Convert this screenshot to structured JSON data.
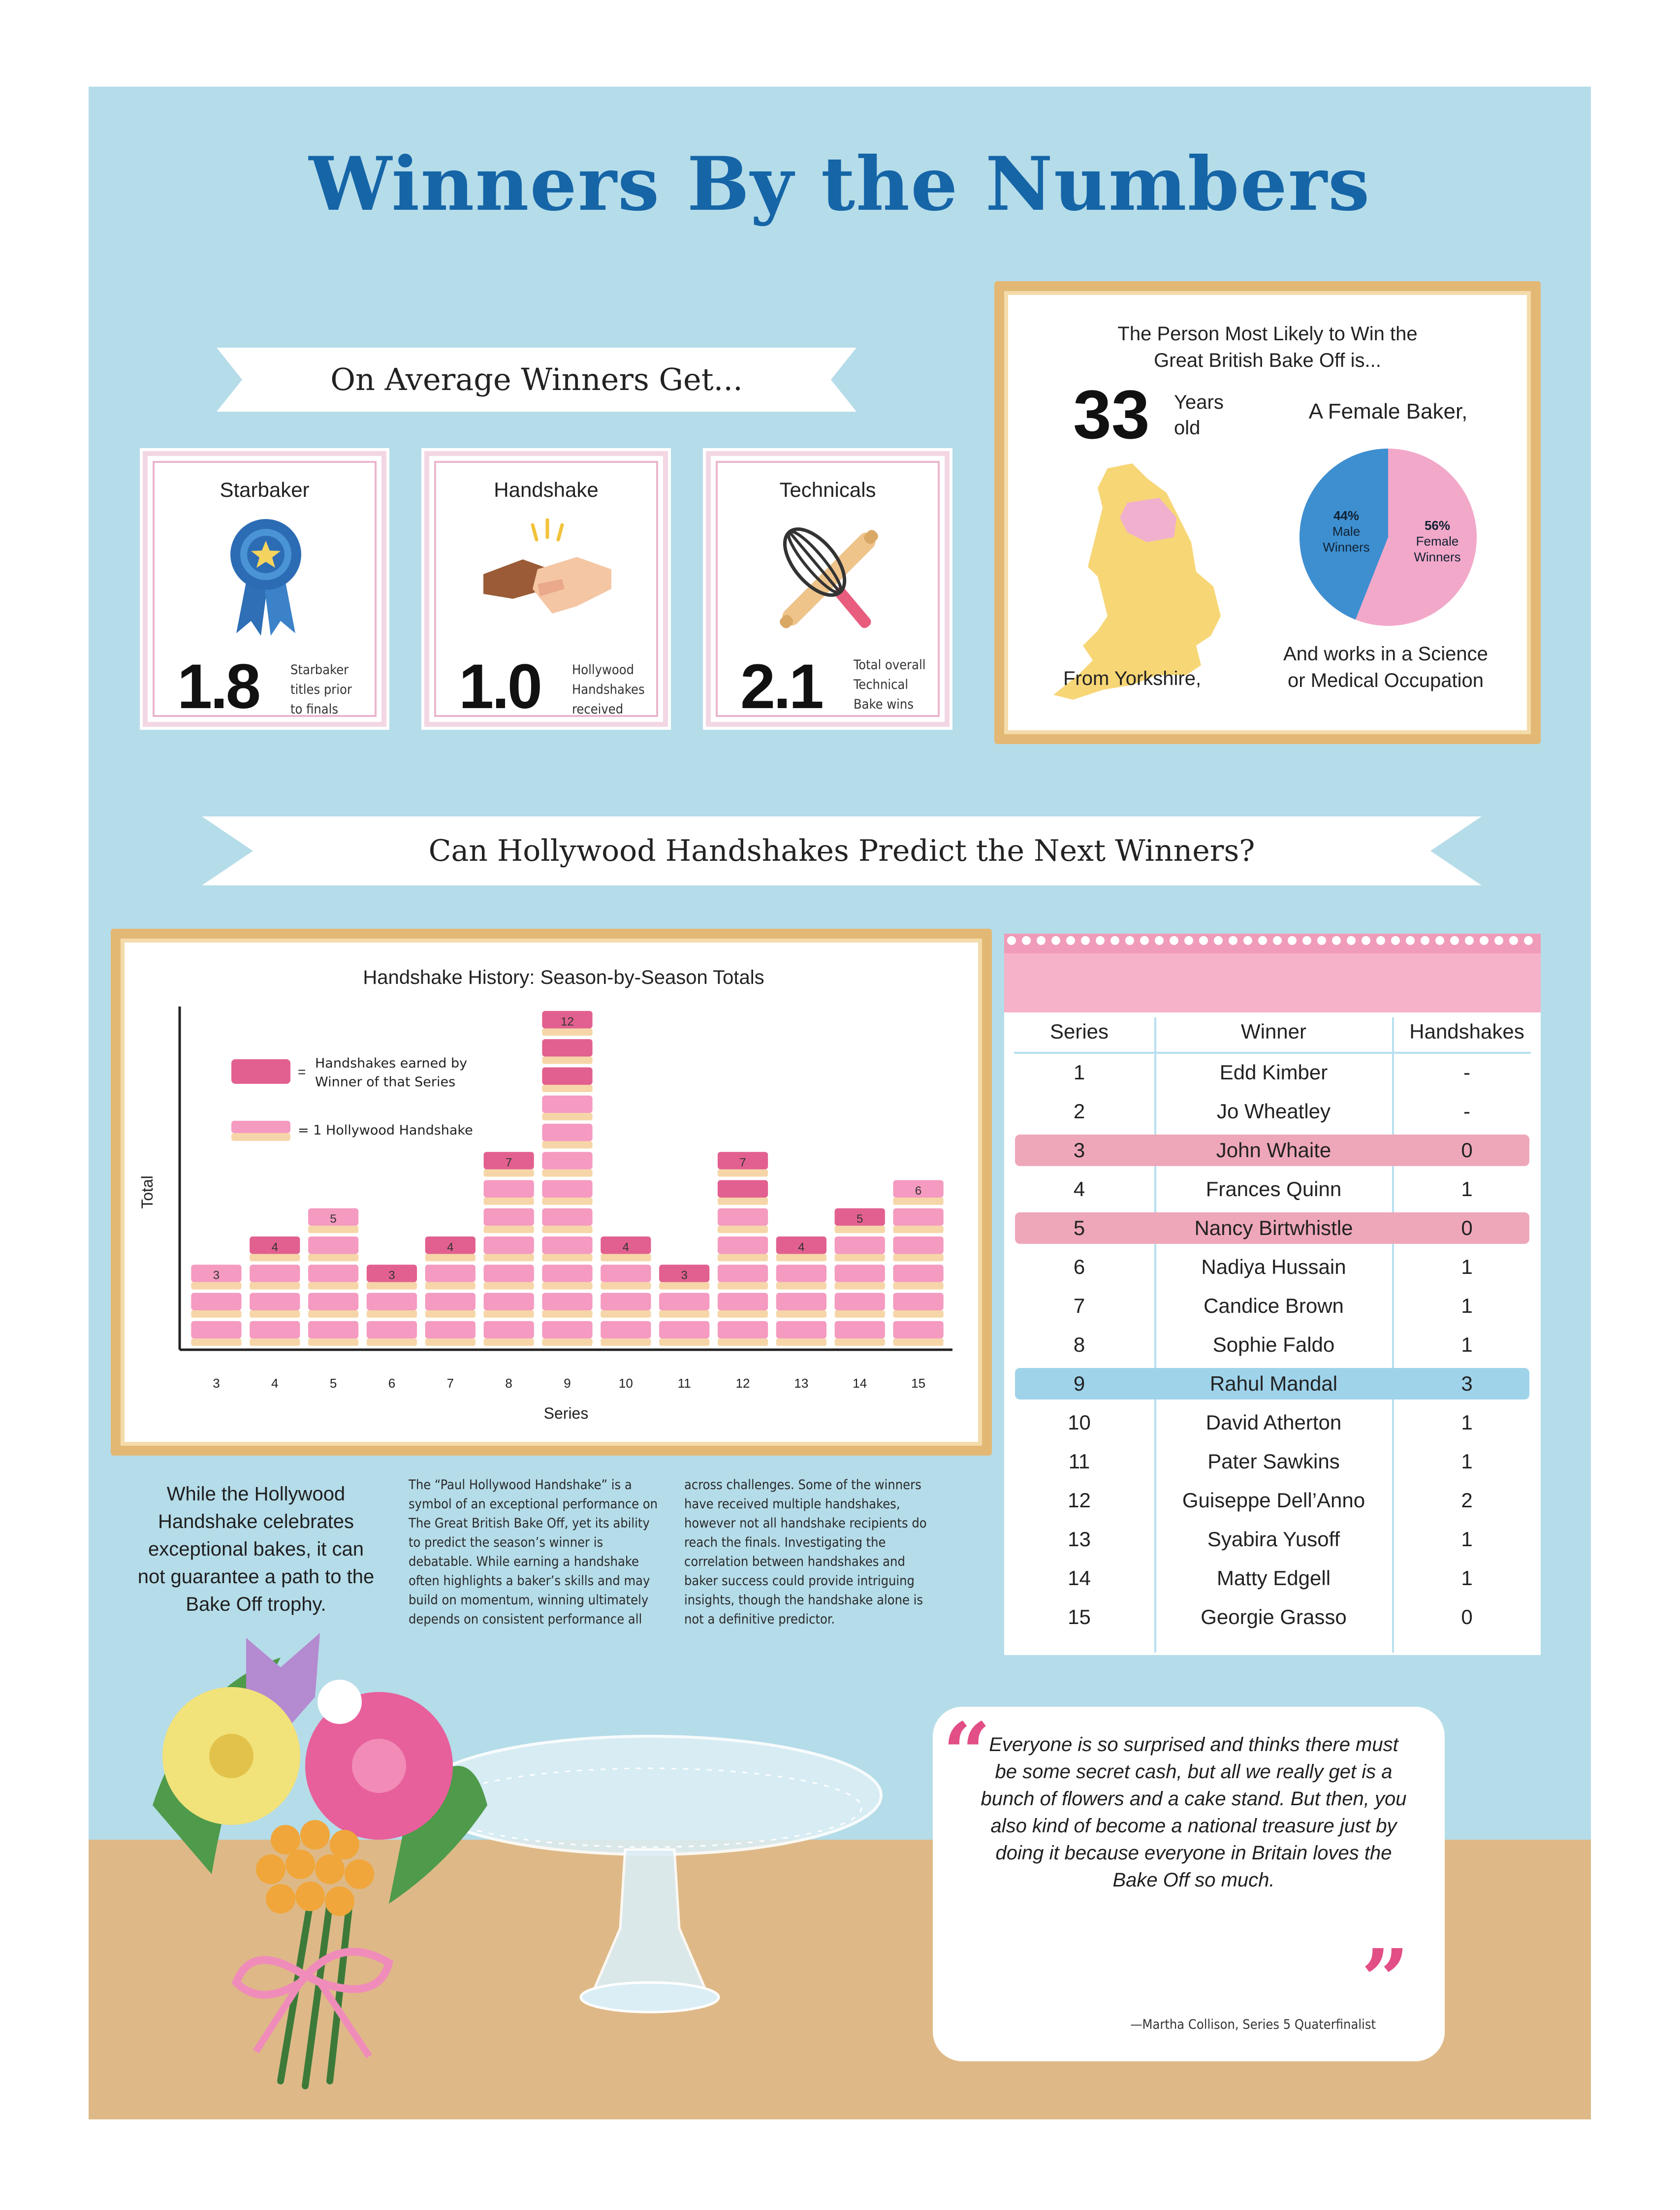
{
  "title": "Winners By the Numbers",
  "average_banner": "On Average Winners Get...",
  "stats": [
    {
      "label": "Starbaker",
      "value": "1.8",
      "caption": [
        "Starbaker",
        "titles prior",
        "to finals"
      ],
      "icon": "blue-ribbon-rosette-icon"
    },
    {
      "label": "Handshake",
      "value": "1.0",
      "caption": [
        "Hollywood",
        "Handshakes",
        "received"
      ],
      "icon": "handshake-icon"
    },
    {
      "label": "Technicals",
      "value": "2.1",
      "caption": [
        "Total overall",
        "Technical",
        "Bake wins"
      ],
      "icon": "whisk-and-rolling-pin-icon"
    }
  ],
  "profile": {
    "heading": [
      "The Person Most Likely to Win the",
      "Great British Bake Off is..."
    ],
    "age": "33",
    "age_unit": [
      "Years",
      "old"
    ],
    "gender": "A Female Baker,",
    "region": "From Yorkshire,",
    "occupation": [
      "And works in a Science",
      "or Medical Occupation"
    ],
    "map_icon": "england-map-icon",
    "pie": {
      "male": {
        "pct": "44%",
        "label": [
          "Male",
          "Winners"
        ],
        "value": 44,
        "color": "#3d8fd0"
      },
      "female": {
        "pct": "56%",
        "label": [
          "Female",
          "Winners"
        ],
        "value": 56,
        "color": "#f2a8c9"
      }
    }
  },
  "handshake_banner": "Can Hollywood Handshakes Predict the Next Winners?",
  "chart_data": {
    "type": "bar",
    "title": "Handshake History: Season-by-Season Totals",
    "xlabel": "Series",
    "ylabel": "Total",
    "categories": [
      "3",
      "4",
      "5",
      "6",
      "7",
      "8",
      "9",
      "10",
      "11",
      "12",
      "13",
      "14",
      "15"
    ],
    "values": [
      3,
      4,
      5,
      3,
      4,
      7,
      12,
      4,
      3,
      7,
      4,
      5,
      6
    ],
    "ylim": [
      0,
      12
    ],
    "legend": [
      "Handshakes earned by",
      "Winner of that Series",
      "= 1 Hollywood Handshake"
    ],
    "winner_handshakes": [
      0,
      1,
      0,
      1,
      1,
      1,
      3,
      1,
      1,
      2,
      1,
      1,
      0
    ],
    "colors": {
      "winner": "#e2608f",
      "handshake": "#f59ac0",
      "cream": "#f6d6a8"
    }
  },
  "table": {
    "headers": [
      "Series",
      "Winner",
      "Handshakes"
    ],
    "rows": [
      {
        "series": "1",
        "winner": "Edd Kimber",
        "handshakes": "-",
        "hl": ""
      },
      {
        "series": "2",
        "winner": "Jo Wheatley",
        "handshakes": "-",
        "hl": ""
      },
      {
        "series": "3",
        "winner": "John Whaite",
        "handshakes": "0",
        "hl": "pink"
      },
      {
        "series": "4",
        "winner": "Frances Quinn",
        "handshakes": "1",
        "hl": ""
      },
      {
        "series": "5",
        "winner": "Nancy Birtwhistle",
        "handshakes": "0",
        "hl": "pink"
      },
      {
        "series": "6",
        "winner": "Nadiya Hussain",
        "handshakes": "1",
        "hl": ""
      },
      {
        "series": "7",
        "winner": "Candice Brown",
        "handshakes": "1",
        "hl": ""
      },
      {
        "series": "8",
        "winner": "Sophie Faldo",
        "handshakes": "1",
        "hl": ""
      },
      {
        "series": "9",
        "winner": "Rahul Mandal",
        "handshakes": "3",
        "hl": "blue"
      },
      {
        "series": "10",
        "winner": "David Atherton",
        "handshakes": "1",
        "hl": ""
      },
      {
        "series": "11",
        "winner": "Pater Sawkins",
        "handshakes": "1",
        "hl": ""
      },
      {
        "series": "12",
        "winner": "Guiseppe Dell’Anno",
        "handshakes": "2",
        "hl": ""
      },
      {
        "series": "13",
        "winner": "Syabira Yusoff",
        "handshakes": "1",
        "hl": ""
      },
      {
        "series": "14",
        "winner": "Matty Edgell",
        "handshakes": "1",
        "hl": ""
      },
      {
        "series": "15",
        "winner": "Georgie Grasso",
        "handshakes": "0",
        "hl": ""
      }
    ]
  },
  "summary": "While the Hollywood Handshake celebrates exceptional bakes, it can not guarantee a path to the Bake Off trophy.",
  "paragraph_1": "The “Paul Hollywood Handshake” is a symbol of an exceptional performance on The Great British Bake Off, yet its ability to predict the season’s winner is debatable. While earning a handshake often highlights a baker’s skills and may build on momentum, winning ultimately depends on consistent performance all",
  "paragraph_2": "across challenges. Some of the winners have received multiple handshakes, however not all handshake recipients do reach the finals. Investigating the correlation between handshakes and baker success could provide intriguing insights, though the handshake alone is not a definitive predictor.",
  "quote": {
    "text": "Everyone is so surprised and thinks there must be some secret cash, but all we really get is a bunch of flowers and a cake stand. But then, you also kind of become a national treasure just by doing it because everyone in Britain loves the Bake Off so much.",
    "attribution": "—Martha Collison, Series 5 Quaterfinalist",
    "open_icon": "open-quote-icon",
    "close_icon": "close-quote-icon"
  },
  "illustrations": [
    "flower-bouquet-icon",
    "glass-cake-stand-icon"
  ]
}
